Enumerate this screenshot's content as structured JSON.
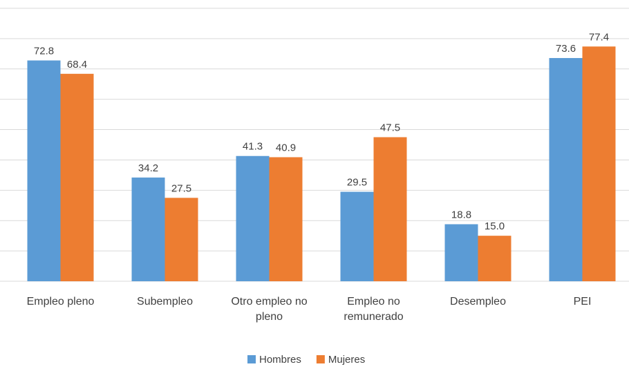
{
  "chart_data": {
    "type": "bar",
    "categories": [
      "Empleo pleno",
      "Subempleo",
      "Otro empleo no pleno",
      "Empleo no remunerado",
      "Desempleo",
      "PEI"
    ],
    "series": [
      {
        "name": "Hombres",
        "color": "#5b9bd5",
        "values": [
          72.8,
          34.2,
          41.3,
          29.5,
          18.8,
          73.6
        ]
      },
      {
        "name": "Mujeres",
        "color": "#ed7d31",
        "values": [
          68.4,
          27.5,
          40.9,
          47.5,
          15,
          77.4
        ],
        "value_labels": [
          "68.4",
          "27.5",
          "40.9",
          "47.5",
          "15.0",
          "77.4"
        ]
      }
    ],
    "ylim": [
      0,
      90
    ],
    "yticks": [
      0,
      10,
      20,
      30,
      40,
      50,
      60,
      70,
      80,
      90
    ],
    "grid": true,
    "legend": "bottom"
  }
}
